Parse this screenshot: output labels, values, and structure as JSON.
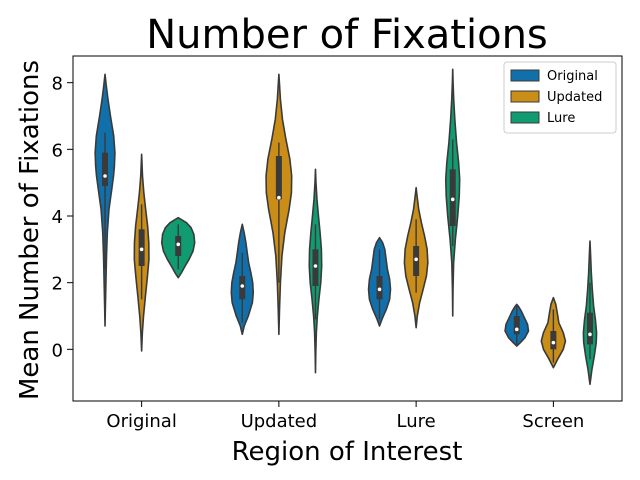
{
  "chart_data": {
    "type": "violin",
    "title": "Number of Fixations",
    "xlabel": "Region of Interest",
    "ylabel": "Mean Number of Fixations",
    "categories": [
      "Original",
      "Updated",
      "Lure",
      "Screen"
    ],
    "yticks": [
      0,
      2,
      4,
      6,
      8
    ],
    "ylim": [
      -1.55,
      8.8
    ],
    "legend": {
      "position": "top-right",
      "entries": [
        "Original",
        "Updated",
        "Lure"
      ]
    },
    "series": [
      {
        "name": "Original",
        "color": "#1170aa",
        "violins": [
          {
            "min": 0.7,
            "max": 8.25,
            "q1": 4.9,
            "median": 5.2,
            "q3": 5.9,
            "whisker_low": 2.4,
            "whisker_high": 6.5,
            "halfwidth": 0.27,
            "profile": [
              [
                0.7,
                0.0
              ],
              [
                1.3,
                0.04
              ],
              [
                2.0,
                0.09
              ],
              [
                2.8,
                0.15
              ],
              [
                3.5,
                0.23
              ],
              [
                4.2,
                0.4
              ],
              [
                4.8,
                0.68
              ],
              [
                5.2,
                0.86
              ],
              [
                5.5,
                0.95
              ],
              [
                5.9,
                1.0
              ],
              [
                6.4,
                0.88
              ],
              [
                7.0,
                0.55
              ],
              [
                7.5,
                0.3
              ],
              [
                7.9,
                0.13
              ],
              [
                8.25,
                0.0
              ]
            ]
          },
          {
            "min": 0.45,
            "max": 3.75,
            "q1": 1.5,
            "median": 1.9,
            "q3": 2.2,
            "whisker_low": 0.8,
            "whisker_high": 2.9,
            "halfwidth": 0.3,
            "profile": [
              [
                0.45,
                0.0
              ],
              [
                0.7,
                0.18
              ],
              [
                1.0,
                0.55
              ],
              [
                1.4,
                0.92
              ],
              [
                1.7,
                1.0
              ],
              [
                2.0,
                0.95
              ],
              [
                2.3,
                0.78
              ],
              [
                2.6,
                0.58
              ],
              [
                2.9,
                0.45
              ],
              [
                3.2,
                0.33
              ],
              [
                3.5,
                0.17
              ],
              [
                3.75,
                0.0
              ]
            ]
          },
          {
            "min": 0.7,
            "max": 3.35,
            "q1": 1.5,
            "median": 1.8,
            "q3": 2.2,
            "whisker_low": 0.9,
            "whisker_high": 3.0,
            "halfwidth": 0.3,
            "profile": [
              [
                0.7,
                0.0
              ],
              [
                0.9,
                0.22
              ],
              [
                1.2,
                0.62
              ],
              [
                1.5,
                0.92
              ],
              [
                1.8,
                1.0
              ],
              [
                2.1,
                0.92
              ],
              [
                2.4,
                0.72
              ],
              [
                2.7,
                0.6
              ],
              [
                3.0,
                0.48
              ],
              [
                3.2,
                0.28
              ],
              [
                3.35,
                0.0
              ]
            ]
          },
          {
            "min": 0.1,
            "max": 1.35,
            "q1": 0.45,
            "median": 0.6,
            "q3": 1.0,
            "whisker_low": 0.15,
            "whisker_high": 1.3,
            "halfwidth": 0.32,
            "profile": [
              [
                0.1,
                0.0
              ],
              [
                0.2,
                0.3
              ],
              [
                0.35,
                0.7
              ],
              [
                0.55,
                1.0
              ],
              [
                0.75,
                0.92
              ],
              [
                0.95,
                0.65
              ],
              [
                1.15,
                0.38
              ],
              [
                1.28,
                0.16
              ],
              [
                1.35,
                0.0
              ]
            ]
          }
        ]
      },
      {
        "name": "Updated",
        "color": "#c98d18",
        "violins": [
          {
            "min": -0.05,
            "max": 5.85,
            "q1": 2.5,
            "median": 3.0,
            "q3": 3.6,
            "whisker_low": 1.5,
            "whisker_high": 4.35,
            "halfwidth": 0.2,
            "profile": [
              [
                -0.05,
                0.0
              ],
              [
                0.5,
                0.1
              ],
              [
                1.0,
                0.26
              ],
              [
                1.6,
                0.52
              ],
              [
                2.2,
                0.8
              ],
              [
                2.7,
                1.0
              ],
              [
                3.2,
                0.98
              ],
              [
                3.7,
                0.82
              ],
              [
                4.2,
                0.55
              ],
              [
                4.7,
                0.3
              ],
              [
                5.2,
                0.12
              ],
              [
                5.85,
                0.0
              ]
            ]
          },
          {
            "min": 0.45,
            "max": 8.25,
            "q1": 4.5,
            "median": 4.55,
            "q3": 5.8,
            "whisker_low": 2.0,
            "whisker_high": 6.2,
            "halfwidth": 0.35,
            "profile": [
              [
                0.45,
                0.0
              ],
              [
                1.2,
                0.05
              ],
              [
                2.0,
                0.12
              ],
              [
                2.8,
                0.24
              ],
              [
                3.5,
                0.46
              ],
              [
                4.2,
                0.8
              ],
              [
                4.7,
                0.98
              ],
              [
                5.2,
                1.0
              ],
              [
                5.7,
                0.86
              ],
              [
                6.3,
                0.55
              ],
              [
                6.9,
                0.28
              ],
              [
                7.5,
                0.12
              ],
              [
                8.25,
                0.0
              ]
            ]
          },
          {
            "min": 0.65,
            "max": 4.85,
            "q1": 2.2,
            "median": 2.7,
            "q3": 3.1,
            "whisker_low": 1.7,
            "whisker_high": 3.9,
            "halfwidth": 0.32,
            "profile": [
              [
                0.65,
                0.0
              ],
              [
                1.0,
                0.1
              ],
              [
                1.4,
                0.3
              ],
              [
                1.8,
                0.6
              ],
              [
                2.2,
                0.88
              ],
              [
                2.6,
                1.0
              ],
              [
                3.0,
                0.94
              ],
              [
                3.4,
                0.72
              ],
              [
                3.8,
                0.45
              ],
              [
                4.2,
                0.22
              ],
              [
                4.6,
                0.08
              ],
              [
                4.85,
                0.0
              ]
            ]
          },
          {
            "min": -0.55,
            "max": 1.55,
            "q1": 0.0,
            "median": 0.2,
            "q3": 0.55,
            "whisker_low": -0.4,
            "whisker_high": 1.2,
            "halfwidth": 0.33,
            "profile": [
              [
                -0.55,
                0.0
              ],
              [
                -0.3,
                0.35
              ],
              [
                0.0,
                0.82
              ],
              [
                0.25,
                1.0
              ],
              [
                0.5,
                0.82
              ],
              [
                0.8,
                0.45
              ],
              [
                1.1,
                0.32
              ],
              [
                1.35,
                0.2
              ],
              [
                1.55,
                0.0
              ]
            ]
          }
        ]
      },
      {
        "name": "Lure",
        "color": "#119b70",
        "violins": [
          {
            "min": 2.15,
            "max": 3.95,
            "q1": 2.8,
            "median": 3.15,
            "q3": 3.4,
            "whisker_low": 2.4,
            "whisker_high": 3.75,
            "halfwidth": 0.45,
            "profile": [
              [
                2.15,
                0.0
              ],
              [
                2.3,
                0.2
              ],
              [
                2.5,
                0.42
              ],
              [
                2.7,
                0.66
              ],
              [
                2.95,
                0.9
              ],
              [
                3.2,
                1.0
              ],
              [
                3.45,
                0.95
              ],
              [
                3.65,
                0.78
              ],
              [
                3.8,
                0.5
              ],
              [
                3.95,
                0.0
              ]
            ]
          },
          {
            "min": -0.7,
            "max": 5.4,
            "q1": 1.9,
            "median": 2.5,
            "q3": 3.0,
            "whisker_low": 0.9,
            "whisker_high": 3.75,
            "halfwidth": 0.17,
            "profile": [
              [
                -0.7,
                0.0
              ],
              [
                -0.1,
                0.05
              ],
              [
                0.5,
                0.14
              ],
              [
                1.0,
                0.3
              ],
              [
                1.5,
                0.55
              ],
              [
                2.0,
                0.85
              ],
              [
                2.5,
                1.0
              ],
              [
                3.0,
                0.95
              ],
              [
                3.5,
                0.74
              ],
              [
                4.0,
                0.48
              ],
              [
                4.5,
                0.24
              ],
              [
                5.0,
                0.08
              ],
              [
                5.4,
                0.0
              ]
            ]
          },
          {
            "min": 1.0,
            "max": 8.4,
            "q1": 3.7,
            "median": 4.5,
            "q3": 5.4,
            "whisker_low": 3.1,
            "whisker_high": 6.3,
            "halfwidth": 0.19,
            "profile": [
              [
                1.0,
                0.0
              ],
              [
                1.8,
                0.04
              ],
              [
                2.6,
                0.13
              ],
              [
                3.3,
                0.38
              ],
              [
                4.0,
                0.72
              ],
              [
                4.6,
                0.94
              ],
              [
                5.1,
                1.0
              ],
              [
                5.6,
                0.85
              ],
              [
                6.2,
                0.55
              ],
              [
                6.9,
                0.3
              ],
              [
                7.5,
                0.14
              ],
              [
                8.0,
                0.05
              ],
              [
                8.4,
                0.0
              ]
            ]
          },
          {
            "min": -1.05,
            "max": 3.25,
            "q1": 0.15,
            "median": 0.45,
            "q3": 1.1,
            "whisker_low": -0.3,
            "whisker_high": 2.0,
            "halfwidth": 0.18,
            "profile": [
              [
                -1.05,
                0.0
              ],
              [
                -0.6,
                0.3
              ],
              [
                -0.2,
                0.66
              ],
              [
                0.2,
                0.95
              ],
              [
                0.5,
                1.0
              ],
              [
                0.9,
                0.82
              ],
              [
                1.3,
                0.55
              ],
              [
                1.8,
                0.35
              ],
              [
                2.3,
                0.2
              ],
              [
                2.8,
                0.1
              ],
              [
                3.25,
                0.0
              ]
            ]
          }
        ]
      }
    ]
  }
}
